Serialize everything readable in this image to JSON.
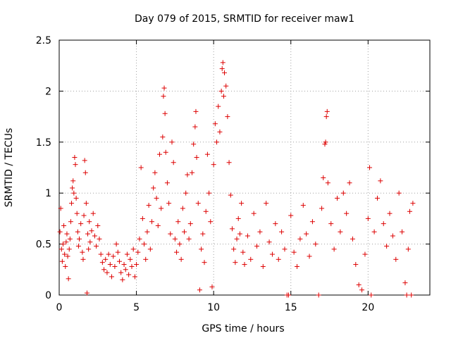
{
  "chart_data": {
    "type": "scatter",
    "title": "Day 079 of 2015, SRMTID for receiver maw1",
    "xlabel": "GPS time / hours",
    "ylabel": "SRMTID / TECUs",
    "xlim": [
      0,
      24
    ],
    "ylim": [
      0,
      2.5
    ],
    "xticks": [
      "0",
      "5",
      "10",
      "15",
      "20"
    ],
    "xtick_values": [
      0,
      5,
      10,
      15,
      20
    ],
    "yticks": [
      "0",
      "0.5",
      "1",
      "1.5",
      "2",
      "2.5"
    ],
    "ytick_values": [
      0,
      0.5,
      1,
      1.5,
      2,
      2.5
    ],
    "grid": true,
    "marker": "plus",
    "color": "#dd0000",
    "series": [
      {
        "name": "SRMTID",
        "points": [
          [
            0.05,
            0.62
          ],
          [
            0.1,
            0.85
          ],
          [
            0.15,
            0.45
          ],
          [
            0.2,
            0.33
          ],
          [
            0.25,
            0.5
          ],
          [
            0.3,
            0.68
          ],
          [
            0.35,
            0.4
          ],
          [
            0.4,
            0.28
          ],
          [
            0.45,
            0.52
          ],
          [
            0.5,
            0.6
          ],
          [
            0.55,
            0.38
          ],
          [
            0.6,
            0.16
          ],
          [
            0.65,
            0.45
          ],
          [
            0.7,
            0.55
          ],
          [
            0.75,
            0.72
          ],
          [
            0.8,
            0.9
          ],
          [
            0.85,
            1.05
          ],
          [
            0.9,
            1.12
          ],
          [
            0.95,
            1.0
          ],
          [
            1.0,
            1.35
          ],
          [
            1.05,
            1.28
          ],
          [
            1.1,
            0.95
          ],
          [
            1.15,
            0.8
          ],
          [
            1.2,
            0.62
          ],
          [
            1.25,
            0.48
          ],
          [
            1.3,
            0.55
          ],
          [
            1.4,
            0.7
          ],
          [
            1.5,
            0.42
          ],
          [
            1.55,
            0.35
          ],
          [
            1.6,
            0.78
          ],
          [
            1.65,
            1.32
          ],
          [
            1.7,
            1.2
          ],
          [
            1.75,
            0.9
          ],
          [
            1.8,
            0.02
          ],
          [
            1.85,
            0.6
          ],
          [
            1.9,
            0.45
          ],
          [
            1.95,
            0.72
          ],
          [
            2.0,
            0.52
          ],
          [
            2.1,
            0.63
          ],
          [
            2.2,
            0.8
          ],
          [
            2.3,
            0.58
          ],
          [
            2.4,
            0.48
          ],
          [
            2.5,
            0.68
          ],
          [
            2.6,
            0.55
          ],
          [
            2.7,
            0.4
          ],
          [
            2.8,
            0.32
          ],
          [
            2.9,
            0.25
          ],
          [
            3.0,
            0.35
          ],
          [
            3.1,
            0.22
          ],
          [
            3.2,
            0.4
          ],
          [
            3.3,
            0.3
          ],
          [
            3.4,
            0.18
          ],
          [
            3.5,
            0.38
          ],
          [
            3.6,
            0.28
          ],
          [
            3.7,
            0.5
          ],
          [
            3.8,
            0.42
          ],
          [
            3.9,
            0.33
          ],
          [
            4.0,
            0.22
          ],
          [
            4.1,
            0.15
          ],
          [
            4.2,
            0.3
          ],
          [
            4.3,
            0.25
          ],
          [
            4.4,
            0.4
          ],
          [
            4.5,
            0.2
          ],
          [
            4.6,
            0.35
          ],
          [
            4.7,
            0.28
          ],
          [
            4.8,
            0.45
          ],
          [
            4.9,
            0.18
          ],
          [
            5.0,
            0.3
          ],
          [
            5.1,
            0.42
          ],
          [
            5.2,
            0.55
          ],
          [
            5.3,
            1.25
          ],
          [
            5.4,
            0.75
          ],
          [
            5.5,
            0.5
          ],
          [
            5.6,
            0.35
          ],
          [
            5.7,
            0.62
          ],
          [
            5.8,
            0.88
          ],
          [
            5.9,
            0.45
          ],
          [
            6.0,
            0.72
          ],
          [
            6.1,
            1.05
          ],
          [
            6.2,
            1.2
          ],
          [
            6.3,
            0.95
          ],
          [
            6.4,
            0.68
          ],
          [
            6.5,
            1.38
          ],
          [
            6.6,
            0.85
          ],
          [
            6.7,
            1.55
          ],
          [
            6.75,
            1.95
          ],
          [
            6.8,
            2.03
          ],
          [
            6.85,
            1.78
          ],
          [
            6.9,
            1.4
          ],
          [
            7.0,
            1.1
          ],
          [
            7.1,
            0.9
          ],
          [
            7.2,
            0.6
          ],
          [
            7.3,
            1.5
          ],
          [
            7.4,
            1.3
          ],
          [
            7.5,
            0.55
          ],
          [
            7.6,
            0.42
          ],
          [
            7.7,
            0.72
          ],
          [
            7.8,
            0.5
          ],
          [
            7.9,
            0.35
          ],
          [
            8.0,
            0.85
          ],
          [
            8.1,
            0.62
          ],
          [
            8.2,
            1.0
          ],
          [
            8.3,
            1.18
          ],
          [
            8.4,
            0.55
          ],
          [
            8.5,
            0.7
          ],
          [
            8.6,
            1.2
          ],
          [
            8.7,
            1.48
          ],
          [
            8.8,
            1.65
          ],
          [
            8.85,
            1.8
          ],
          [
            8.9,
            1.35
          ],
          [
            9.0,
            0.9
          ],
          [
            9.1,
            0.05
          ],
          [
            9.2,
            0.45
          ],
          [
            9.3,
            0.6
          ],
          [
            9.4,
            0.32
          ],
          [
            9.5,
            0.82
          ],
          [
            9.6,
            1.38
          ],
          [
            9.7,
            1.0
          ],
          [
            9.8,
            0.72
          ],
          [
            9.9,
            0.08
          ],
          [
            10.0,
            1.28
          ],
          [
            10.1,
            1.68
          ],
          [
            10.2,
            1.5
          ],
          [
            10.3,
            1.85
          ],
          [
            10.4,
            1.6
          ],
          [
            10.5,
            2.0
          ],
          [
            10.55,
            2.22
          ],
          [
            10.6,
            2.28
          ],
          [
            10.65,
            1.95
          ],
          [
            10.7,
            2.18
          ],
          [
            10.8,
            2.05
          ],
          [
            10.9,
            1.75
          ],
          [
            11.0,
            1.3
          ],
          [
            11.1,
            0.98
          ],
          [
            11.2,
            0.65
          ],
          [
            11.3,
            0.45
          ],
          [
            11.4,
            0.32
          ],
          [
            11.5,
            0.55
          ],
          [
            11.6,
            0.75
          ],
          [
            11.7,
            0.6
          ],
          [
            11.8,
            0.9
          ],
          [
            11.9,
            0.42
          ],
          [
            12.0,
            0.3
          ],
          [
            12.2,
            0.58
          ],
          [
            12.4,
            0.35
          ],
          [
            12.6,
            0.8
          ],
          [
            12.8,
            0.48
          ],
          [
            13.0,
            0.62
          ],
          [
            13.2,
            0.28
          ],
          [
            13.4,
            0.9
          ],
          [
            13.6,
            0.52
          ],
          [
            13.8,
            0.4
          ],
          [
            14.0,
            0.7
          ],
          [
            14.2,
            0.35
          ],
          [
            14.4,
            0.62
          ],
          [
            14.6,
            0.45
          ],
          [
            14.75,
            0.0
          ],
          [
            14.85,
            0.0
          ],
          [
            15.0,
            0.78
          ],
          [
            15.2,
            0.42
          ],
          [
            15.4,
            0.28
          ],
          [
            15.6,
            0.55
          ],
          [
            15.8,
            0.88
          ],
          [
            16.0,
            0.6
          ],
          [
            16.2,
            0.38
          ],
          [
            16.4,
            0.72
          ],
          [
            16.6,
            0.5
          ],
          [
            16.8,
            0.0
          ],
          [
            17.0,
            0.85
          ],
          [
            17.1,
            1.15
          ],
          [
            17.2,
            1.48
          ],
          [
            17.25,
            1.5
          ],
          [
            17.3,
            1.75
          ],
          [
            17.35,
            1.8
          ],
          [
            17.4,
            1.1
          ],
          [
            17.6,
            0.7
          ],
          [
            17.8,
            0.45
          ],
          [
            18.0,
            0.95
          ],
          [
            18.2,
            0.62
          ],
          [
            18.4,
            1.0
          ],
          [
            18.6,
            0.8
          ],
          [
            18.8,
            1.1
          ],
          [
            19.0,
            0.55
          ],
          [
            19.2,
            0.3
          ],
          [
            19.4,
            0.1
          ],
          [
            19.6,
            0.05
          ],
          [
            19.8,
            0.4
          ],
          [
            20.0,
            0.75
          ],
          [
            20.1,
            1.25
          ],
          [
            20.2,
            0.0
          ],
          [
            20.4,
            0.62
          ],
          [
            20.6,
            0.95
          ],
          [
            20.8,
            1.12
          ],
          [
            21.0,
            0.7
          ],
          [
            21.2,
            0.48
          ],
          [
            21.4,
            0.8
          ],
          [
            21.6,
            0.58
          ],
          [
            21.8,
            0.35
          ],
          [
            22.0,
            1.0
          ],
          [
            22.2,
            0.62
          ],
          [
            22.4,
            0.12
          ],
          [
            22.5,
            0.0
          ],
          [
            22.6,
            0.45
          ],
          [
            22.7,
            0.82
          ],
          [
            22.8,
            0.0
          ],
          [
            22.9,
            0.9
          ]
        ]
      }
    ]
  }
}
